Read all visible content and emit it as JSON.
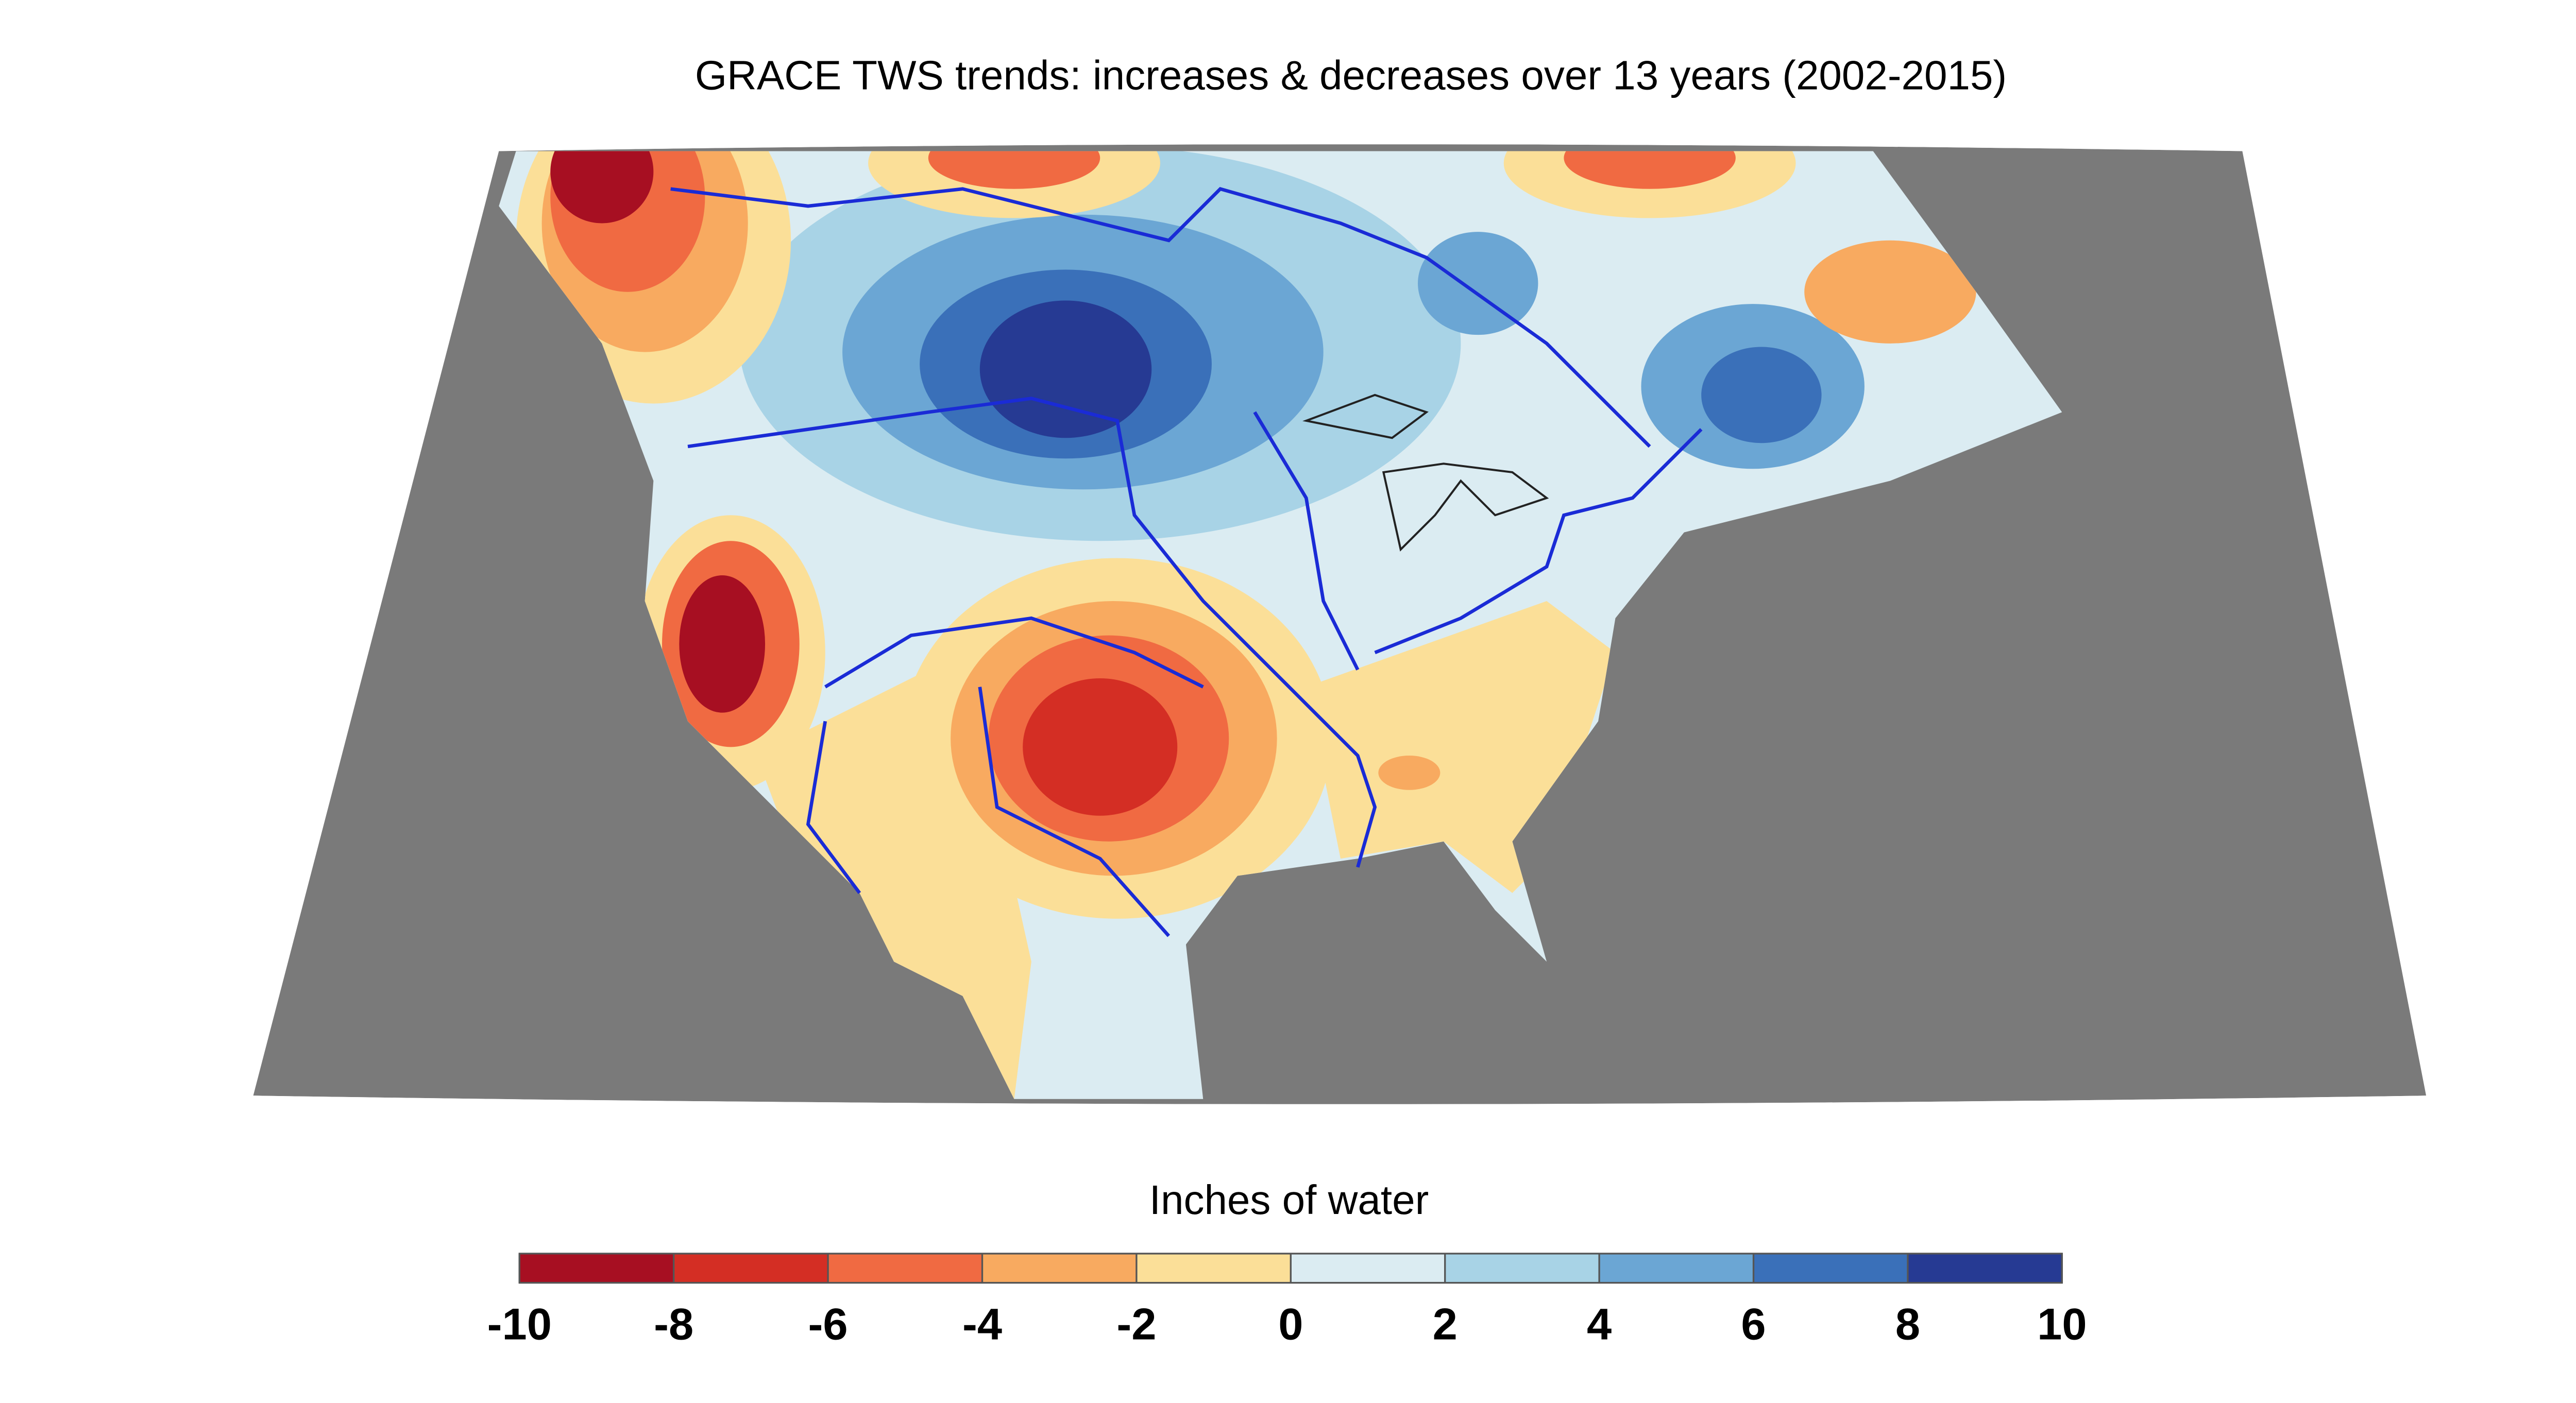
{
  "title": "GRACE TWS trends: increases & decreases over 13 years (2002-2015)",
  "legend": {
    "title": "Inches of water",
    "ticks": [
      -10,
      -8,
      -6,
      -4,
      -2,
      0,
      2,
      4,
      6,
      8,
      10
    ],
    "colors": [
      "#a70f22",
      "#d42e24",
      "#f06a42",
      "#f8aa60",
      "#fbdf98",
      "#dbecf2",
      "#a8d3e6",
      "#6ba6d4",
      "#3a70b9",
      "#263a93"
    ]
  }
}
